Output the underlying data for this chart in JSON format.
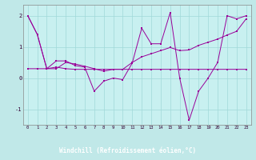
{
  "xlabel": "Windchill (Refroidissement éolien,°C)",
  "bg_color": "#c0e8e8",
  "plot_bg_color": "#c8f0f0",
  "line_color": "#990099",
  "grid_color": "#a0d8d8",
  "xlabel_bg": "#330066",
  "xlabel_fg": "#ffffff",
  "xlim": [
    -0.5,
    23.5
  ],
  "ylim": [
    -1.5,
    2.35
  ],
  "yticks": [
    -1,
    0,
    1,
    2
  ],
  "xticks": [
    0,
    1,
    2,
    3,
    4,
    5,
    6,
    7,
    8,
    9,
    10,
    11,
    12,
    13,
    14,
    15,
    16,
    17,
    18,
    19,
    20,
    21,
    22,
    23
  ],
  "series": [
    [
      2.0,
      1.4,
      0.3,
      0.55,
      0.55,
      0.4,
      0.35,
      -0.42,
      -0.1,
      0.0,
      -0.05,
      0.48,
      1.6,
      1.1,
      1.1,
      2.1,
      0.0,
      -1.35,
      -0.42,
      0.0,
      0.5,
      2.0,
      1.9,
      2.0
    ],
    [
      2.0,
      1.4,
      0.3,
      0.3,
      0.5,
      0.45,
      0.38,
      0.3,
      0.22,
      0.28,
      0.28,
      0.5,
      0.68,
      0.78,
      0.88,
      0.98,
      0.88,
      0.9,
      1.05,
      1.15,
      1.25,
      1.38,
      1.5,
      1.9
    ],
    [
      0.3,
      0.3,
      0.3,
      0.35,
      0.3,
      0.28,
      0.28,
      0.28,
      0.28,
      0.28,
      0.28,
      0.28,
      0.28,
      0.28,
      0.28,
      0.28,
      0.28,
      0.28,
      0.28,
      0.28,
      0.28,
      0.28,
      0.28,
      0.28
    ]
  ]
}
